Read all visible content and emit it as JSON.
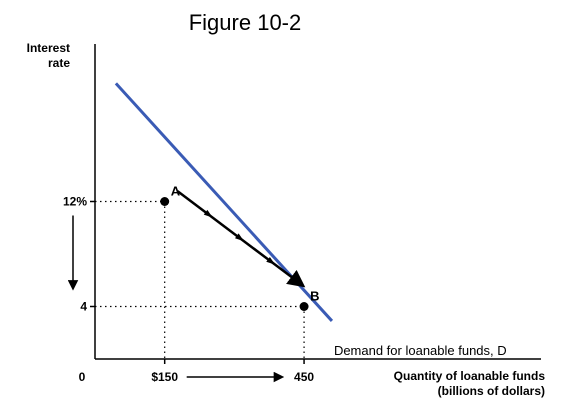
{
  "chart_data": {
    "type": "line",
    "title": "Figure 10-2",
    "ylabel_lines": [
      "Interest",
      "rate"
    ],
    "xlabel_lines": [
      "Quantity of loanable funds",
      "(billions of dollars)"
    ],
    "origin_label": "0",
    "x_ticks": [
      {
        "value": 150,
        "label": "$150"
      },
      {
        "value": 450,
        "label": "450"
      }
    ],
    "y_ticks": [
      {
        "value": 12,
        "label": "12%"
      },
      {
        "value": 4,
        "label": "4"
      }
    ],
    "xlim": [
      0,
      960
    ],
    "ylim": [
      0,
      24
    ],
    "series": [
      {
        "name": "Demand for loanable funds, D",
        "color": "#3a5bb5",
        "x": [
          45,
          510
        ],
        "y": [
          21,
          2.9
        ]
      }
    ],
    "points": [
      {
        "label": "A",
        "x": 150,
        "y": 12
      },
      {
        "label": "B",
        "x": 450,
        "y": 4
      }
    ],
    "movement_arrow": {
      "from": "A",
      "to": "B",
      "direction": "down-along-curve"
    },
    "axis_arrows": {
      "x": "right",
      "y": "down"
    },
    "grid": false,
    "legend": "none"
  }
}
